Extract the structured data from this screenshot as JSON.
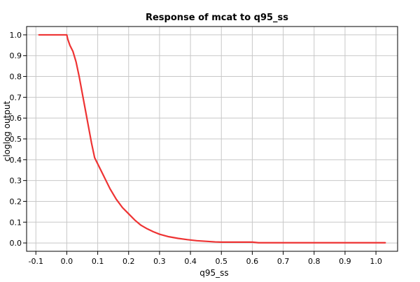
{
  "chart_data": {
    "type": "line",
    "title": "Response of mcat to q95_ss",
    "xlabel": "q95_ss",
    "ylabel": "cloglog output",
    "xlim": [
      -0.13,
      1.07
    ],
    "ylim": [
      -0.04,
      1.04
    ],
    "grid": true,
    "legend": "none",
    "x_ticks": [
      -0.1,
      0.0,
      0.1,
      0.2,
      0.3,
      0.4,
      0.5,
      0.6,
      0.7,
      0.8,
      0.9,
      1.0
    ],
    "x_tick_labels": [
      "-0.1",
      "0.0",
      "0.1",
      "0.2",
      "0.3",
      "0.4",
      "0.5",
      "0.6",
      "0.7",
      "0.8",
      "0.9",
      "1.0"
    ],
    "y_ticks": [
      0.0,
      0.1,
      0.2,
      0.3,
      0.4,
      0.5,
      0.6,
      0.7,
      0.8,
      0.9,
      1.0
    ],
    "y_tick_labels": [
      "0.0",
      "0.1",
      "0.2",
      "0.3",
      "0.4",
      "0.5",
      "0.6",
      "0.7",
      "0.8",
      "0.9",
      "1.0"
    ],
    "series": [
      {
        "color": "#ee3333",
        "x": [
          -0.09,
          -0.05,
          0.0,
          0.003,
          0.01,
          0.02,
          0.03,
          0.04,
          0.05,
          0.06,
          0.07,
          0.08,
          0.09,
          0.1,
          0.12,
          0.14,
          0.16,
          0.18,
          0.2,
          0.22,
          0.24,
          0.26,
          0.28,
          0.3,
          0.33,
          0.36,
          0.39,
          0.42,
          0.45,
          0.48,
          0.5,
          0.55,
          0.6,
          0.62,
          0.7,
          0.8,
          0.9,
          1.0,
          1.03
        ],
        "y": [
          1.0,
          1.0,
          1.0,
          0.98,
          0.95,
          0.92,
          0.87,
          0.8,
          0.72,
          0.64,
          0.56,
          0.48,
          0.41,
          0.38,
          0.32,
          0.26,
          0.21,
          0.17,
          0.14,
          0.11,
          0.085,
          0.068,
          0.054,
          0.042,
          0.03,
          0.022,
          0.016,
          0.011,
          0.008,
          0.005,
          0.004,
          0.004,
          0.004,
          0.001,
          0.001,
          0.001,
          0.001,
          0.001,
          0.001
        ]
      }
    ]
  }
}
